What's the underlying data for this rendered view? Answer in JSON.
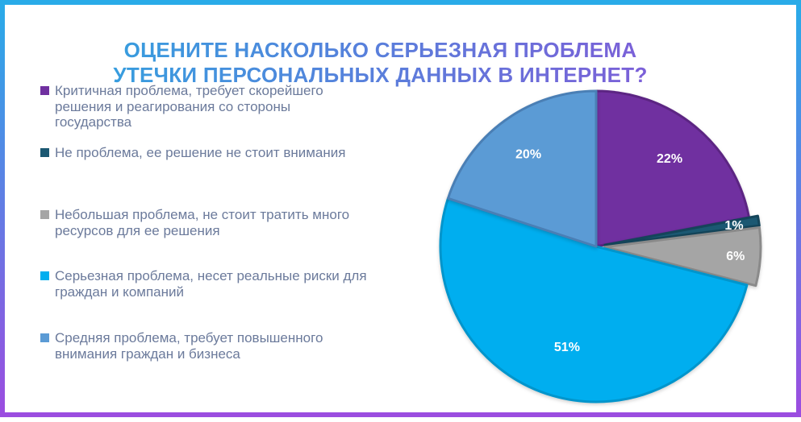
{
  "title": {
    "line1": "ОЦЕНИТЕ НАСКОЛЬКО СЕРЬЕЗНАЯ ПРОБЛЕМА",
    "line2": "УТЕЧКИ ПЕРСОНАЛЬНЫХ ДАННЫХ В ИНТЕРНЕТ?",
    "gradient_from": "#2aa9e0",
    "gradient_to": "#8e4fd6"
  },
  "frame": {
    "border_from": "#29abe8",
    "border_to": "#9b4de0"
  },
  "chart_data": {
    "type": "pie",
    "title": "ОЦЕНИТЕ НАСКОЛЬКО СЕРЬЕЗНАЯ ПРОБЛЕМА УТЕЧКИ ПЕРСОНАЛЬНЫХ ДАННЫХ В ИНТЕРНЕТ?",
    "unit": "percent",
    "start_angle_deg": 0,
    "direction": "clockwise",
    "legend_position": "left",
    "labels": "percent-inside",
    "slices": [
      {
        "label": "Критичная проблема, требует скорейшего\nрешения и реагирования со стороны\nгосударства",
        "value": 22,
        "display": "22%",
        "color": "#7030a0",
        "border": "#5c2583",
        "exploded": false
      },
      {
        "label": "Не проблема, ее решение не стоит внимания",
        "value": 1,
        "display": "1%",
        "color": "#1b5872",
        "border": "#14455a",
        "exploded": true
      },
      {
        "label": "Небольшая проблема, не стоит тратить много\nресурсов для ее решения",
        "value": 6,
        "display": "6%",
        "color": "#a5a5a5",
        "border": "#8a8a8a",
        "exploded": true
      },
      {
        "label": "Серьезная проблема, несет реальные риски для\nграждан и компаний",
        "value": 51,
        "display": "51%",
        "color": "#00aeef",
        "border": "#0095cc",
        "exploded": false
      },
      {
        "label": "Средняя проблема, требует повышенного\nвнимания граждан и бизнеса",
        "value": 20,
        "display": "20%",
        "color": "#5b9bd5",
        "border": "#4a7fb5",
        "exploded": false
      }
    ]
  }
}
